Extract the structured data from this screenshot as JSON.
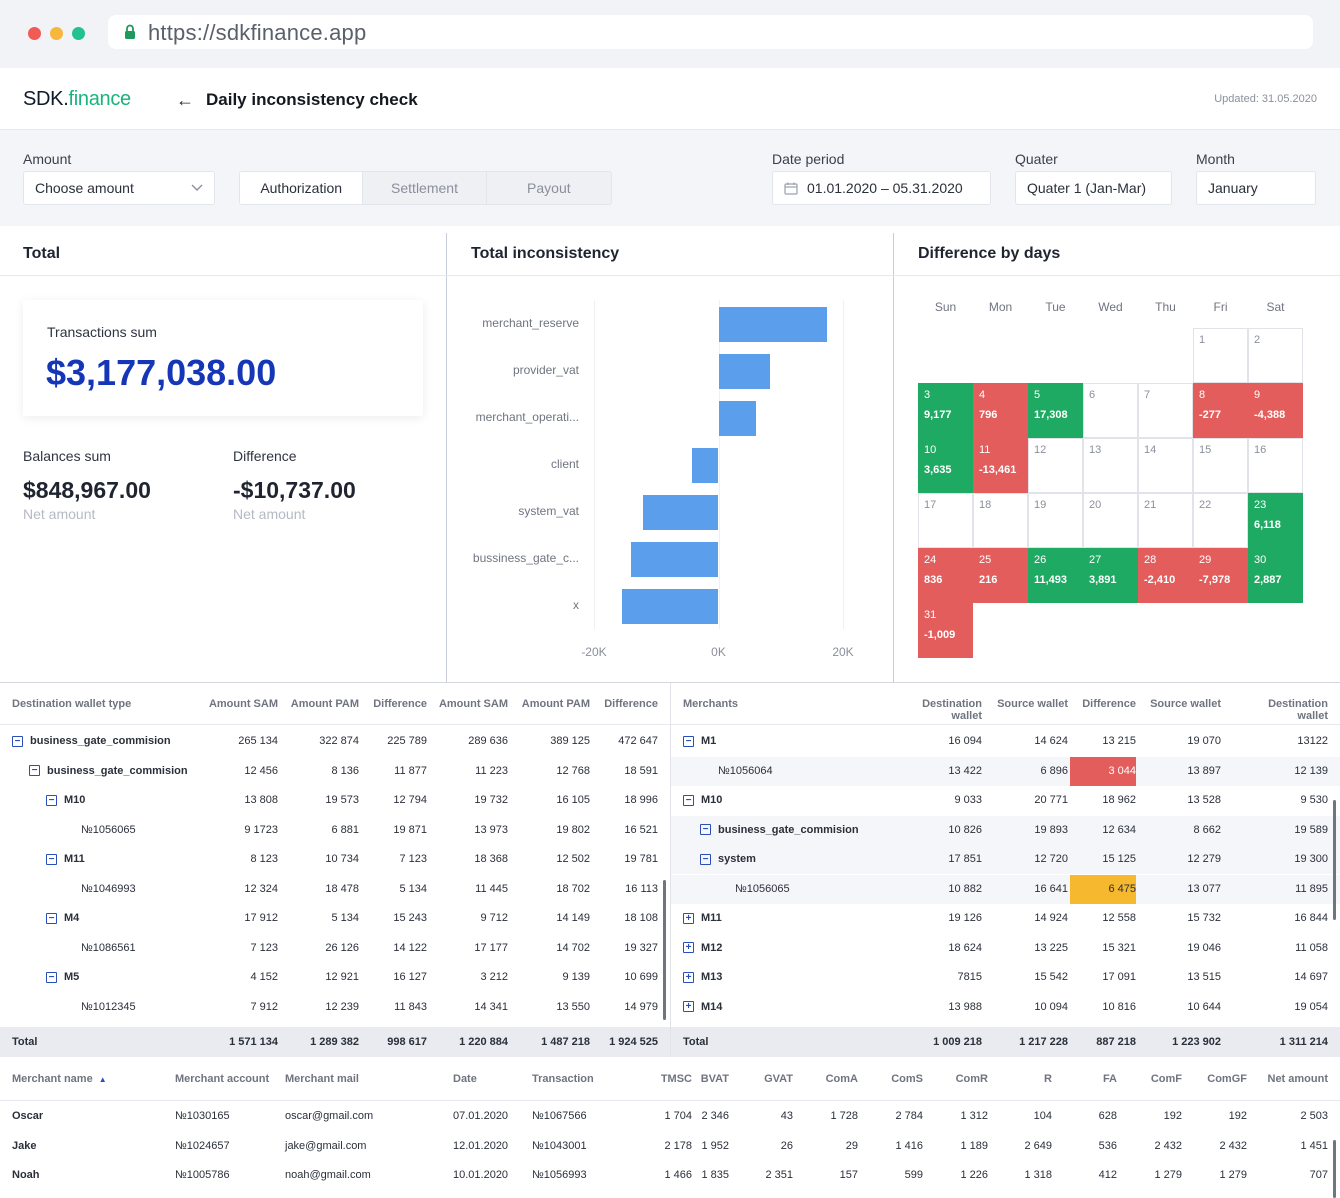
{
  "browser": {
    "url": "https://sdkfinance.app"
  },
  "header": {
    "logo_main": "SDK.",
    "logo_accent": "finance",
    "back_icon": "arrow-left-icon",
    "title": "Daily inconsistency check",
    "updated": "Updated: 31.05.2020"
  },
  "filters": {
    "amount_label": "Amount",
    "amount_value": "Choose amount",
    "tabs": [
      "Authorization",
      "Settlement",
      "Payout"
    ],
    "date_label": "Date period",
    "date_value": "01.01.2020 – 05.31.2020",
    "quater_label": "Quater",
    "quater_value": "Quater 1 (Jan-Mar)",
    "month_label": "Month",
    "month_value": "January"
  },
  "total": {
    "title": "Total",
    "tx_label": "Transactions sum",
    "tx_value": "$3,177,038.00",
    "bal_label": "Balances sum",
    "bal_value": "$848,967.00",
    "bal_sub": "Net amount",
    "diff_label": "Difference",
    "diff_value": "-$10,737.00",
    "diff_sub": "Net amount"
  },
  "inconsistency": {
    "title": "Total inconsistency"
  },
  "chart_data": {
    "type": "bar",
    "orientation": "horizontal",
    "categories": [
      "merchant_reserve",
      "provider_vat",
      "merchant_operati...",
      "client",
      "system_vat",
      "bussiness_gate_c...",
      "x"
    ],
    "values": [
      17500,
      8200,
      6000,
      -4200,
      -12200,
      -14000,
      -15500
    ],
    "xlim": [
      -20000,
      20000
    ],
    "xticks": [
      "-20K",
      "0K",
      "20K"
    ],
    "color": "#5b9fec"
  },
  "calendar": {
    "title": "Difference by days",
    "days": [
      "Sun",
      "Mon",
      "Tue",
      "Wed",
      "Thu",
      "Fri",
      "Sat"
    ],
    "cells": [
      {
        "d": "1",
        "v": ""
      },
      {
        "d": "2",
        "v": ""
      },
      {
        "d": "3",
        "v": "9,177",
        "c": "g"
      },
      {
        "d": "4",
        "v": "796",
        "c": "r"
      },
      {
        "d": "5",
        "v": "17,308",
        "c": "g"
      },
      {
        "d": "6",
        "v": ""
      },
      {
        "d": "7",
        "v": ""
      },
      {
        "d": "8",
        "v": "-277",
        "c": "r"
      },
      {
        "d": "9",
        "v": "-4,388",
        "c": "r"
      },
      {
        "d": "10",
        "v": "3,635",
        "c": "g"
      },
      {
        "d": "11",
        "v": "-13,461",
        "c": "r"
      },
      {
        "d": "12",
        "v": ""
      },
      {
        "d": "13",
        "v": ""
      },
      {
        "d": "14",
        "v": ""
      },
      {
        "d": "15",
        "v": ""
      },
      {
        "d": "16",
        "v": ""
      },
      {
        "d": "17",
        "v": ""
      },
      {
        "d": "18",
        "v": ""
      },
      {
        "d": "19",
        "v": ""
      },
      {
        "d": "20",
        "v": ""
      },
      {
        "d": "21",
        "v": ""
      },
      {
        "d": "22",
        "v": ""
      },
      {
        "d": "23",
        "v": "6,118",
        "c": "g"
      },
      {
        "d": "24",
        "v": "836",
        "c": "r"
      },
      {
        "d": "25",
        "v": "216",
        "c": "r"
      },
      {
        "d": "26",
        "v": "11,493",
        "c": "g"
      },
      {
        "d": "27",
        "v": "3,891",
        "c": "g"
      },
      {
        "d": "28",
        "v": "-2,410",
        "c": "r"
      },
      {
        "d": "29",
        "v": "-7,978",
        "c": "r"
      },
      {
        "d": "30",
        "v": "2,887",
        "c": "g"
      },
      {
        "d": "31",
        "v": "-1,009",
        "c": "r"
      }
    ]
  },
  "left_table": {
    "headers": [
      "Destination wallet type",
      "Amount SAM",
      "Amount PAM",
      "Difference",
      "Amount SAM",
      "Amount PAM",
      "Difference"
    ],
    "rows": [
      {
        "name": "business_gate_commision",
        "lvl": 0,
        "tog": "−",
        "bold": true,
        "v": [
          "265 134",
          "322 874",
          "225 789",
          "289 636",
          "389 125",
          "472 647"
        ]
      },
      {
        "name": "business_gate_commision",
        "lvl": 1,
        "tog": "−",
        "bold": true,
        "v": [
          "12 456",
          "8 136",
          "11 877",
          "11 223",
          "12 768",
          "18 591"
        ]
      },
      {
        "name": "M10",
        "lvl": 2,
        "tog": "−",
        "bold": true,
        "v": [
          "13 808",
          "19 573",
          "12 794",
          "19 732",
          "16 105",
          "18 996"
        ]
      },
      {
        "name": "№1056065",
        "lvl": 3,
        "tog": "",
        "bold": false,
        "v": [
          "9 1723",
          "6 881",
          "19 871",
          "13 973",
          "19 802",
          "16 521"
        ]
      },
      {
        "name": "M11",
        "lvl": 2,
        "tog": "−",
        "bold": true,
        "v": [
          "8 123",
          "10 734",
          "7 123",
          "18 368",
          "12 502",
          "19 781"
        ]
      },
      {
        "name": "№1046993",
        "lvl": 3,
        "tog": "",
        "bold": false,
        "v": [
          "12 324",
          "18 478",
          "5 134",
          "11 445",
          "18 702",
          "16 113"
        ]
      },
      {
        "name": "M4",
        "lvl": 2,
        "tog": "−",
        "bold": true,
        "v": [
          "17 912",
          "5 134",
          "15 243",
          "9 712",
          "14 149",
          "18 108"
        ]
      },
      {
        "name": "№1086561",
        "lvl": 3,
        "tog": "",
        "bold": false,
        "v": [
          "7 123",
          "26 126",
          "14 122",
          "17 177",
          "14 702",
          "19 327"
        ]
      },
      {
        "name": "M5",
        "lvl": 2,
        "tog": "−",
        "bold": true,
        "v": [
          "4 152",
          "12 921",
          "16 127",
          "3 212",
          "9 139",
          "10 699"
        ]
      },
      {
        "name": "№1012345",
        "lvl": 3,
        "tog": "",
        "bold": false,
        "v": [
          "7 912",
          "12 239",
          "11 843",
          "14 341",
          "13 550",
          "14 979"
        ]
      }
    ],
    "total": {
      "label": "Total",
      "v": [
        "1 571 134",
        "1 289 382",
        "998 617",
        "1 220 884",
        "1 487 218",
        "1 924 525"
      ]
    }
  },
  "right_table": {
    "headers": [
      "Merchants",
      "Destination wallet",
      "Source wallet",
      "Difference",
      "Source wallet",
      "Destination wallet"
    ],
    "rows": [
      {
        "name": "M1",
        "lvl": 0,
        "tog": "−",
        "bold": true,
        "v": [
          "16 094",
          "14 624",
          "13 215",
          "19 070",
          "13122"
        ]
      },
      {
        "name": "№1056064",
        "lvl": 1,
        "tog": "",
        "bold": false,
        "hl": "red",
        "shade": true,
        "v": [
          "13 422",
          "6 896",
          "3 044",
          "13 897",
          "12 139"
        ]
      },
      {
        "name": "M10",
        "lvl": 0,
        "tog": "−",
        "bold": true,
        "v": [
          "9 033",
          "20 771",
          "18 962",
          "13 528",
          "9 530"
        ]
      },
      {
        "name": "business_gate_commision",
        "lvl": 1,
        "tog": "−",
        "bold": true,
        "shade": true,
        "v": [
          "10 826",
          "19 893",
          "12 634",
          "8 662",
          "19 589"
        ]
      },
      {
        "name": "system",
        "lvl": 1,
        "tog": "−",
        "bold": true,
        "shade": true,
        "v": [
          "17 851",
          "12 720",
          "15 125",
          "12 279",
          "19 300"
        ]
      },
      {
        "name": "№1056065",
        "lvl": 2,
        "tog": "",
        "bold": false,
        "hl": "yellow",
        "shade": true,
        "v": [
          "10 882",
          "16 641",
          "6 475",
          "13 077",
          "11 895"
        ]
      },
      {
        "name": "M11",
        "lvl": 0,
        "tog": "+",
        "bold": true,
        "v": [
          "19 126",
          "14 924",
          "12 558",
          "15 732",
          "16 844"
        ]
      },
      {
        "name": "M12",
        "lvl": 0,
        "tog": "+",
        "bold": true,
        "v": [
          "18 624",
          "13 225",
          "15 321",
          "19 046",
          "11 058"
        ]
      },
      {
        "name": "M13",
        "lvl": 0,
        "tog": "+",
        "bold": true,
        "v": [
          "7815",
          "15 542",
          "17 091",
          "13 515",
          "14 697"
        ]
      },
      {
        "name": "M14",
        "lvl": 0,
        "tog": "+",
        "bold": true,
        "v": [
          "13 988",
          "10 094",
          "10 816",
          "10 644",
          "19 054"
        ]
      }
    ],
    "total": {
      "label": "Total",
      "v": [
        "1 009 218",
        "1 217 228",
        "887 218",
        "1 223 902",
        "1 311 214"
      ]
    }
  },
  "bottom_table": {
    "headers": [
      "Merchant name",
      "Merchant account",
      "Merchant mail",
      "Date",
      "Transaction",
      "TMSC",
      "BVAT",
      "GVAT",
      "ComA",
      "ComS",
      "ComR",
      "R",
      "FA",
      "ComF",
      "ComGF",
      "Net amount"
    ],
    "sort_icon": "sort-up-icon",
    "rows": [
      [
        "Oscar",
        "№1030165",
        "oscar@gmail.com",
        "07.01.2020",
        "№1067566",
        "1 704",
        "2 346",
        "43",
        "1 728",
        "2 784",
        "1 312",
        "104",
        "628",
        "192",
        "192",
        "2 503"
      ],
      [
        "Jake",
        "№1024657",
        "jake@gmail.com",
        "12.01.2020",
        "№1043001",
        "2 178",
        "1 952",
        "26",
        "29",
        "1 416",
        "1 189",
        "2 649",
        "536",
        "2 432",
        "2 432",
        "1 451"
      ],
      [
        "Noah",
        "№1005786",
        "noah@gmail.com",
        "10.01.2020",
        "№1056993",
        "1 466",
        "1 835",
        "2 351",
        "157",
        "599",
        "1 226",
        "1 318",
        "412",
        "1 279",
        "1 279",
        "707"
      ]
    ]
  }
}
